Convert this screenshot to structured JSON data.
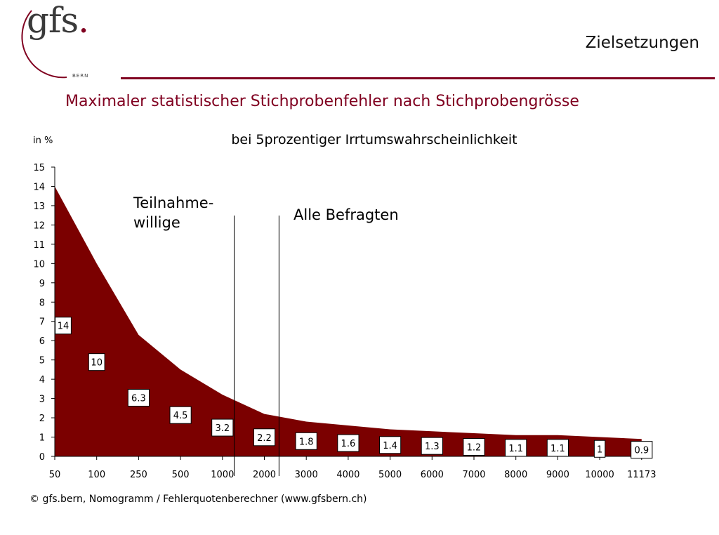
{
  "logo": {
    "mark": "gfs",
    "dot": ".",
    "subtitle": "BERN"
  },
  "header": {
    "section_title": "Zielsetzungen"
  },
  "slide_title": "Maximaler statistischer Stichprobenfehler nach Stichprobengrösse",
  "footer": {
    "note": "© gfs.bern, Nomogramm / Fehlerquotenberechner (www.gfsbern.ch)"
  },
  "colors": {
    "brand": "#800020",
    "area": "#7b0000"
  },
  "chart_data": {
    "type": "area",
    "subtitle": "bei 5prozentiger Irrtumswahrscheinlichkeit",
    "ylabel": "in %",
    "xlabel": "",
    "categories": [
      "50",
      "100",
      "250",
      "500",
      "1000",
      "2000",
      "3000",
      "4000",
      "5000",
      "6000",
      "7000",
      "8000",
      "9000",
      "10000",
      "11173"
    ],
    "values": [
      14,
      10,
      6.3,
      4.5,
      3.2,
      2.2,
      1.8,
      1.6,
      1.4,
      1.3,
      1.2,
      1.1,
      1.1,
      1,
      0.9
    ],
    "labels": [
      "14",
      "10",
      "6.3",
      "4.5",
      "3.2",
      "2.2",
      "1.8",
      "1.6",
      "1.4",
      "1.3",
      "1.2",
      "1.1",
      "1.1",
      "1",
      "0.9"
    ],
    "ylim": [
      0,
      15
    ],
    "yticks": [
      0,
      1,
      2,
      3,
      4,
      5,
      6,
      7,
      8,
      9,
      10,
      11,
      12,
      13,
      14,
      15
    ],
    "grid": false,
    "legend": "none",
    "annotations": [
      {
        "lines": [
          "Teilnahme-",
          "willige"
        ],
        "x_index": 4.28
      },
      {
        "lines": [
          "Alle Befragten"
        ],
        "x_index": 5.35
      }
    ]
  }
}
